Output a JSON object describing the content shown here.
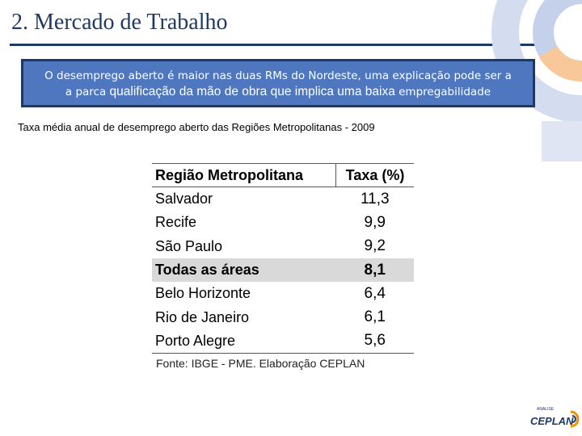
{
  "slide": {
    "title": "2. Mercado de Trabalho"
  },
  "callout": {
    "line1": "O desemprego aberto é maior nas duas RMs do Nordeste, uma explicação pode ser a",
    "line2_prefix": "a parca ",
    "line2_emphasis": "qualificação da mão de obra que implica uma baixa",
    "line2_suffix": " empregabilidade"
  },
  "table": {
    "caption": "Taxa média anual de desemprego aberto das Regiões Metropolitanas - 2009",
    "headers": [
      "Região Metropolitana",
      "Taxa (%)"
    ],
    "rows": [
      {
        "region": "Salvador",
        "rate": "11,3",
        "highlight": false
      },
      {
        "region": "Recife",
        "rate": "9,9",
        "highlight": false
      },
      {
        "region": "São Paulo",
        "rate": "9,2",
        "highlight": false
      },
      {
        "region": "Todas as áreas",
        "rate": "8,1",
        "highlight": true
      },
      {
        "region": "Belo Horizonte",
        "rate": "6,4",
        "highlight": false
      },
      {
        "region": "Rio de Janeiro",
        "rate": "6,1",
        "highlight": false
      },
      {
        "region": "Porto Alegre",
        "rate": "5,6",
        "highlight": false
      }
    ],
    "source": "Fonte: IBGE - PME. Elaboração CEPLAN"
  },
  "logo": {
    "tagline": "ANALISE",
    "name": "CEPLAN"
  },
  "colors": {
    "title": "#1f3864",
    "callout_bg": "#4f77c0",
    "highlight_row": "#d9d9d9",
    "deco_blue": "#c5d0ea",
    "deco_orange": "#f8c89a"
  }
}
